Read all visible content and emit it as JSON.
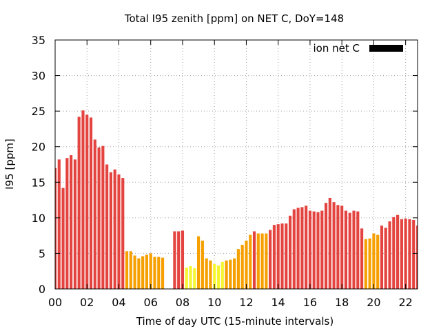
{
  "chart_data": {
    "type": "bar",
    "title": "Total I95 zenith [ppm] on NET C, DoY=148",
    "xlabel": "Time of day UTC (15-minute intervals)",
    "ylabel": "I95 [ppm]",
    "ylim": [
      0,
      35
    ],
    "xlim": [
      0,
      22.75
    ],
    "x_ticks": [
      "00",
      "02",
      "04",
      "06",
      "08",
      "10",
      "12",
      "14",
      "16",
      "18",
      "20",
      "22"
    ],
    "y_ticks": [
      0,
      5,
      10,
      15,
      20,
      25,
      30,
      35
    ],
    "grid": true,
    "legend_position": "top-right",
    "series": [
      {
        "name": "ion net C",
        "color": "#000000",
        "x": [
          0.0,
          0.25,
          0.5,
          0.75,
          1.0,
          1.25,
          1.5,
          1.75,
          2.0,
          2.25,
          2.5,
          2.75,
          3.0,
          3.25,
          3.5,
          3.75,
          4.0,
          4.25,
          4.5,
          4.75,
          5.0,
          5.25,
          5.5,
          5.75,
          6.0,
          6.25,
          6.5,
          6.75,
          7.5,
          7.75,
          8.0,
          8.25,
          8.5,
          8.75,
          9.0,
          9.25,
          9.5,
          9.75,
          10.0,
          10.25,
          10.5,
          10.75,
          11.0,
          11.25,
          11.5,
          11.75,
          12.0,
          12.25,
          12.5,
          12.75,
          13.0,
          13.25,
          13.5,
          13.75,
          14.0,
          14.25,
          14.5,
          14.75,
          15.0,
          15.25,
          15.5,
          15.75,
          16.0,
          16.25,
          16.5,
          16.75,
          17.0,
          17.25,
          17.5,
          17.75,
          18.0,
          18.25,
          18.5,
          18.75,
          19.0,
          19.25,
          19.5,
          19.75,
          20.0,
          20.25,
          20.5,
          20.75,
          21.0,
          21.25,
          21.5,
          21.75,
          22.0,
          22.25,
          22.5,
          22.75
        ],
        "values": [
          17.0,
          18.2,
          14.2,
          18.4,
          18.8,
          18.2,
          24.2,
          25.1,
          24.5,
          24.1,
          21.0,
          19.9,
          20.1,
          17.5,
          16.4,
          16.8,
          16.1,
          15.6,
          5.3,
          5.3,
          4.7,
          4.3,
          4.6,
          4.8,
          5.0,
          4.5,
          4.5,
          4.4,
          8.1,
          8.1,
          8.2,
          3.0,
          3.2,
          2.9,
          7.4,
          6.8,
          4.3,
          4.0,
          3.5,
          3.3,
          3.8,
          4.0,
          4.1,
          4.3,
          5.6,
          6.2,
          6.8,
          7.6,
          8.1,
          7.8,
          7.8,
          7.8,
          8.3,
          9.0,
          9.1,
          9.2,
          9.2,
          10.3,
          11.2,
          11.4,
          11.5,
          11.7,
          11.0,
          10.9,
          10.8,
          11.0,
          12.1,
          12.8,
          12.2,
          11.8,
          11.7,
          11.0,
          10.7,
          11.0,
          10.9,
          8.5,
          7.0,
          7.1,
          7.8,
          7.6,
          8.9,
          8.6,
          9.5,
          10.1,
          10.4,
          9.8,
          9.9,
          9.8,
          9.7,
          8.9
        ]
      }
    ],
    "color_scale": {
      "high": "#e4443f",
      "mid": "#f5a000",
      "low": "#f6f532",
      "high_threshold": 8.0,
      "low_threshold": 4.0
    }
  }
}
